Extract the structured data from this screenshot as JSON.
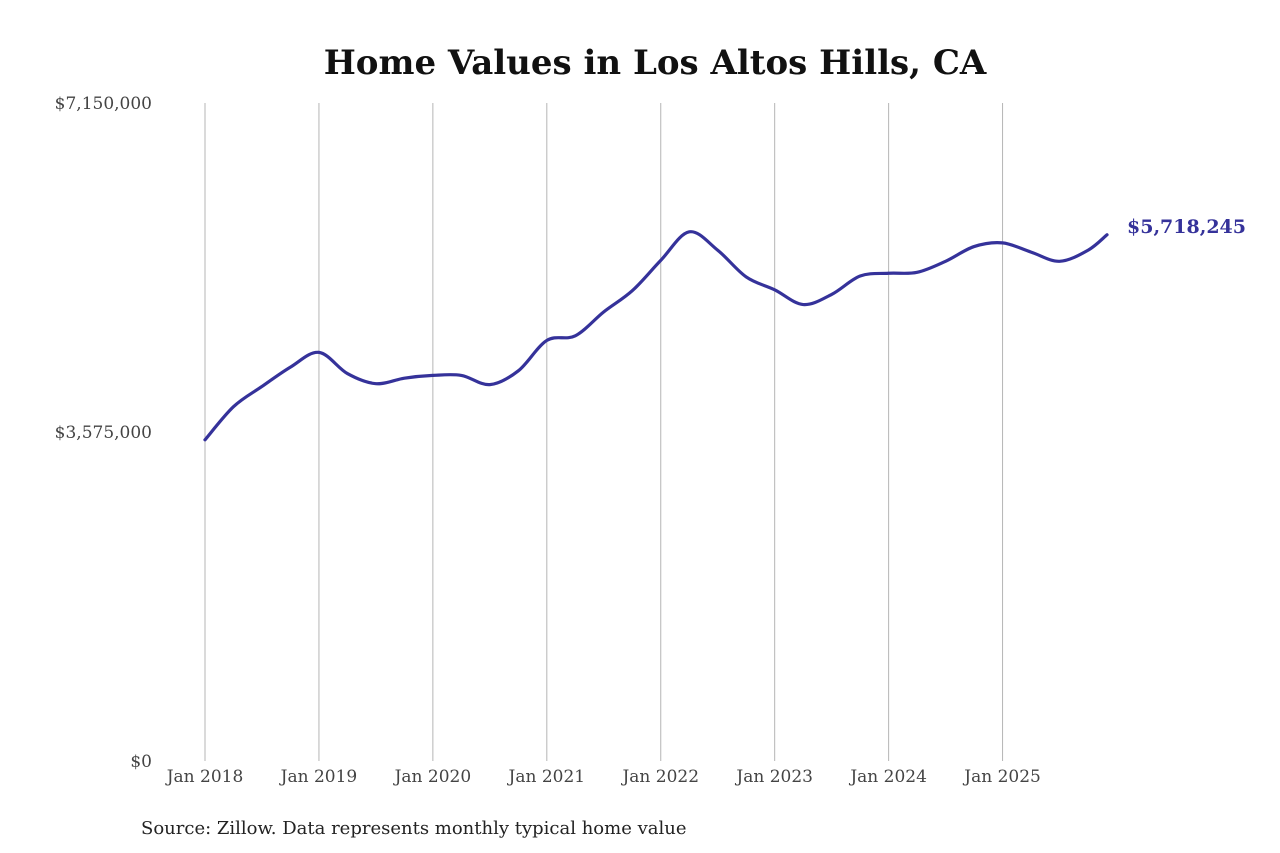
{
  "chart_data": {
    "type": "line",
    "title": "Home Values in Los Altos Hills, CA",
    "xlabel": "",
    "ylabel": "",
    "ylim": [
      0,
      7150000
    ],
    "xlim": [
      "2018-01",
      "2025-12"
    ],
    "y_ticks": [
      "$0",
      "$3,575,000",
      "$7,150,000"
    ],
    "y_tick_values": [
      0,
      3575000,
      7150000
    ],
    "x_ticks": [
      "Jan 2018",
      "Jan 2019",
      "Jan 2020",
      "Jan 2021",
      "Jan 2022",
      "Jan 2023",
      "Jan 2024",
      "Jan 2025"
    ],
    "x_tick_values": [
      "2018-01",
      "2019-01",
      "2020-01",
      "2021-01",
      "2022-01",
      "2023-01",
      "2024-01",
      "2025-01"
    ],
    "grid": "vertical",
    "legend": "none",
    "series": [
      {
        "color": "#35329a",
        "points": [
          [
            "2018-01",
            3490000
          ],
          [
            "2018-04",
            3850000
          ],
          [
            "2018-07",
            4070000
          ],
          [
            "2018-10",
            4280000
          ],
          [
            "2019-01",
            4440000
          ],
          [
            "2019-04",
            4210000
          ],
          [
            "2019-07",
            4100000
          ],
          [
            "2019-10",
            4160000
          ],
          [
            "2020-01",
            4190000
          ],
          [
            "2020-04",
            4190000
          ],
          [
            "2020-07",
            4090000
          ],
          [
            "2020-10",
            4240000
          ],
          [
            "2021-01",
            4570000
          ],
          [
            "2021-04",
            4620000
          ],
          [
            "2021-07",
            4880000
          ],
          [
            "2021-10",
            5110000
          ],
          [
            "2022-01",
            5440000
          ],
          [
            "2022-04",
            5750000
          ],
          [
            "2022-07",
            5550000
          ],
          [
            "2022-10",
            5260000
          ],
          [
            "2023-01",
            5120000
          ],
          [
            "2023-04",
            4960000
          ],
          [
            "2023-07",
            5070000
          ],
          [
            "2023-10",
            5270000
          ],
          [
            "2024-01",
            5300000
          ],
          [
            "2024-04",
            5310000
          ],
          [
            "2024-07",
            5430000
          ],
          [
            "2024-10",
            5590000
          ],
          [
            "2025-01",
            5630000
          ],
          [
            "2025-04",
            5530000
          ],
          [
            "2025-07",
            5430000
          ],
          [
            "2025-10",
            5550000
          ],
          [
            "2025-12",
            5718245
          ]
        ]
      }
    ],
    "end_label": "$5,718,245",
    "note": "Source: Zillow. Data represents monthly typical home value"
  }
}
